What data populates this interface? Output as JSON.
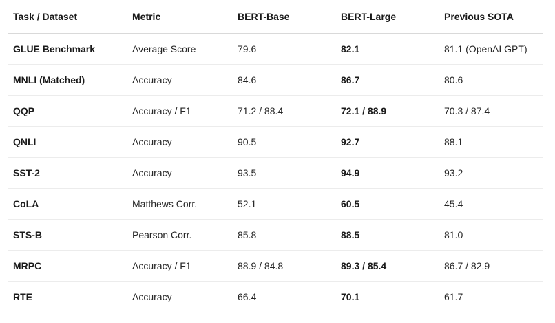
{
  "table": {
    "headers": [
      "Task / Dataset",
      "Metric",
      "BERT-Base",
      "BERT-Large",
      "Previous SOTA"
    ],
    "rows": [
      [
        "GLUE Benchmark",
        "Average Score",
        "79.6",
        "82.1",
        "81.1 (OpenAI GPT)"
      ],
      [
        "MNLI (Matched)",
        "Accuracy",
        "84.6",
        "86.7",
        "80.6"
      ],
      [
        "QQP",
        "Accuracy / F1",
        "71.2 / 88.4",
        "72.1 / 88.9",
        "70.3 / 87.4"
      ],
      [
        "QNLI",
        "Accuracy",
        "90.5",
        "92.7",
        "88.1"
      ],
      [
        "SST-2",
        "Accuracy",
        "93.5",
        "94.9",
        "93.2"
      ],
      [
        "CoLA",
        "Matthews Corr.",
        "52.1",
        "60.5",
        "45.4"
      ],
      [
        "STS-B",
        "Pearson Corr.",
        "85.8",
        "88.5",
        "81.0"
      ],
      [
        "MRPC",
        "Accuracy / F1",
        "88.9 / 84.8",
        "89.3 / 85.4",
        "86.7 / 82.9"
      ],
      [
        "RTE",
        "Accuracy",
        "66.4",
        "70.1",
        "61.7"
      ]
    ]
  }
}
